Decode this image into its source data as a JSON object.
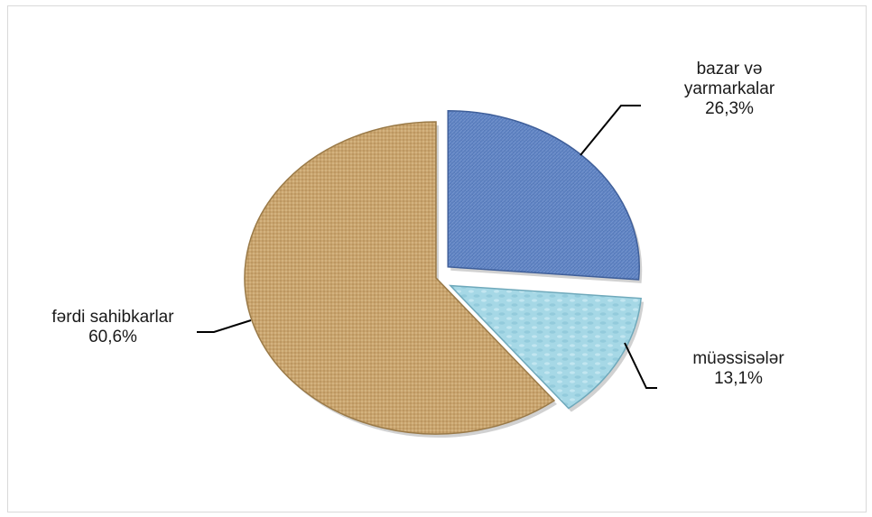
{
  "chart_data": {
    "type": "pie",
    "style": "3d-exploded",
    "series": [
      {
        "name": "",
        "categories": [
          "bazar və yarmarkalar",
          "müəssisələr",
          "fərdi sahibkarlar"
        ],
        "values": [
          26.3,
          13.1,
          60.6
        ],
        "label_lines": [
          [
            "bazar və",
            "yarmarkalar",
            "26,3%"
          ],
          [
            "müəssisələr",
            "13,1%"
          ],
          [
            "fərdi sahibkarlar",
            "60,6%"
          ]
        ],
        "colors": [
          "#5b7fbf",
          "#a6d8e6",
          "#c9a46e"
        ]
      }
    ],
    "title": "",
    "legend": "none"
  }
}
